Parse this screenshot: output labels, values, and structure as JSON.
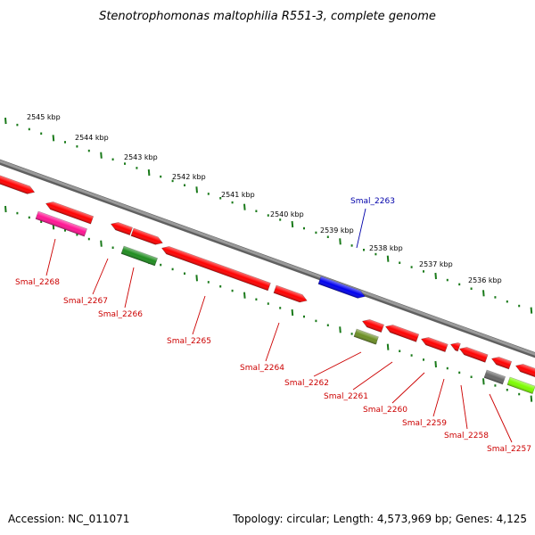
{
  "title": "Stenotrophomonas maltophilia R551-3, complete genome",
  "footer": {
    "accession": "Accession: NC_011071",
    "summary": "Topology: circular; Length: 4,573,969 bp; Genes: 4,125"
  },
  "colors": {
    "backbone": "#808080",
    "tick": "#1a7a1a",
    "label_red": "#cc0000",
    "label_blue": "#0000aa"
  },
  "kbp_ticks": [
    "2545 kbp",
    "2544 kbp",
    "2543 kbp",
    "2542 kbp",
    "2541 kbp",
    "2540 kbp",
    "2539 kbp",
    "2538 kbp",
    "2537 kbp",
    "2536 kbp"
  ],
  "genes": [
    {
      "label": "Smal_2268",
      "color": "#ff1493"
    },
    {
      "label": "Smal_2267",
      "color": "#ff0000"
    },
    {
      "label": "Smal_2266",
      "color": "#1e8c1e"
    },
    {
      "label": "Smal_2265",
      "color": "#ff0000"
    },
    {
      "label": "Smal_2264",
      "color": "#ff0000"
    },
    {
      "label": "Smal_2263",
      "color": "#0000ee"
    },
    {
      "label": "Smal_2262",
      "color": "#6b8e23"
    },
    {
      "label": "Smal_2261",
      "color": "#ff0000"
    },
    {
      "label": "Smal_2260",
      "color": "#ff0000"
    },
    {
      "label": "Smal_2259",
      "color": "#ff0000"
    },
    {
      "label": "Smal_2258",
      "color": "#ff0000"
    },
    {
      "label": "Smal_2257",
      "color": "#7cfc00"
    }
  ]
}
